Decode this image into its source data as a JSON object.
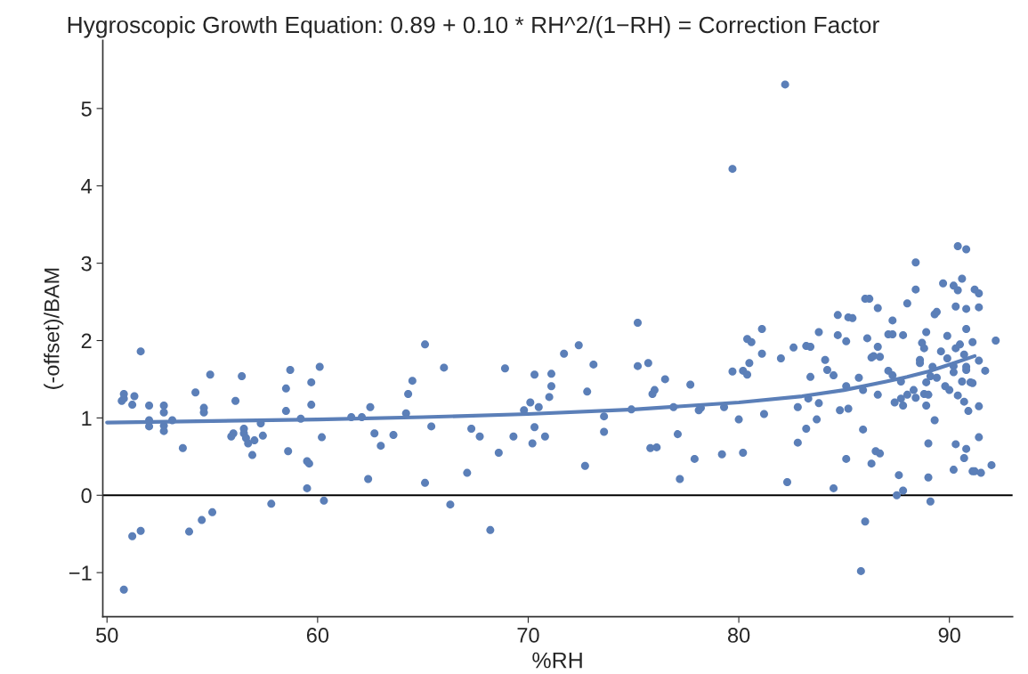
{
  "chart_data": {
    "type": "scatter",
    "title": "Hygroscopic Growth Equation: 0.89 + 0.10 * RH^2/(1−RH) = Correction Factor",
    "xlabel": "%RH",
    "ylabel": "(-offset)/BAM",
    "xlim": [
      49.8,
      93.0
    ],
    "ylim": [
      -1.57,
      5.88
    ],
    "xticks": [
      50,
      60,
      70,
      80,
      90
    ],
    "yticks": [
      {
        "value": -1,
        "label": "−1"
      },
      0,
      1,
      2,
      3,
      4,
      5
    ],
    "grid": false,
    "marker": "circle",
    "ref_lines": [
      {
        "axis": "y",
        "value": 0,
        "color": "#000000"
      }
    ],
    "series": [
      {
        "color": "#5b7fb8",
        "x": [
          50.7,
          50.8,
          50.8,
          51.2,
          51.3,
          51.6,
          50.8,
          51.2,
          51.6,
          52.0,
          52.0,
          52.0,
          52.7,
          52.7,
          52.7,
          52.7,
          53.1,
          53.6,
          54.2,
          54.6,
          54.6,
          54.9,
          53.9,
          54.5,
          55.0,
          56.1,
          56.4,
          55.9,
          56.0,
          56.5,
          56.5,
          56.6,
          56.7,
          56.9,
          57.0,
          57.4,
          57.3,
          57.8,
          58.5,
          58.7,
          58.5,
          58.6,
          59.2,
          59.5,
          59.6,
          59.5,
          59.7,
          59.7,
          60.1,
          60.2,
          60.3,
          61.6,
          62.1,
          62.5,
          62.7,
          63.0,
          62.4,
          63.6,
          64.2,
          64.3,
          64.5,
          65.1,
          65.4,
          65.1,
          66.0,
          66.3,
          67.1,
          67.3,
          67.7,
          68.2,
          68.6,
          68.9,
          69.3,
          69.8,
          70.1,
          70.3,
          70.5,
          70.3,
          70.2,
          70.8,
          71.0,
          71.1,
          71.1,
          71.7,
          72.4,
          72.7,
          72.8,
          73.1,
          73.6,
          73.6,
          74.9,
          75.2,
          75.2,
          75.7,
          76.0,
          75.9,
          75.8,
          76.1,
          76.5,
          76.9,
          77.1,
          77.2,
          77.7,
          77.9,
          78.1,
          78.2,
          79.3,
          79.2,
          79.7,
          80.2,
          80.0,
          79.7,
          80.2,
          80.4,
          80.5,
          80.4,
          80.6,
          81.1,
          81.1,
          81.2,
          82.0,
          82.2,
          82.6,
          83.2,
          83.4,
          82.3,
          82.8,
          82.8,
          83.2,
          83.4,
          83.3,
          83.8,
          83.7,
          83.8,
          84.1,
          84.2,
          84.5,
          84.5,
          84.7,
          84.7,
          85.1,
          85.1,
          84.8,
          85.2,
          85.1,
          85.2,
          85.4,
          85.7,
          85.9,
          85.9,
          86.0,
          85.8,
          86.0,
          86.2,
          86.6,
          86.1,
          86.6,
          86.3,
          86.4,
          86.7,
          86.6,
          86.5,
          86.7,
          86.3,
          87.1,
          87.3,
          87.3,
          87.3,
          87.6,
          87.5,
          87.8,
          89.1,
          90.4,
          90.8,
          88.4,
          90.6,
          89.7,
          90.2,
          88.4,
          90.4,
          91.2,
          91.4,
          88.0,
          90.3,
          90.8,
          91.4,
          89.3,
          89.4,
          87.1,
          87.8,
          88.9,
          89.9,
          90.8,
          92.2,
          88.7,
          88.8,
          90.5,
          91.1,
          90.3,
          89.6,
          88.6,
          88.6,
          89.9,
          90.7,
          91.4,
          91.7,
          89.2,
          90.2,
          90.8,
          90.8,
          90.2,
          89.1,
          89.4,
          87.7,
          88.9,
          90.6,
          91.0,
          91.1,
          89.8,
          90.0,
          88.3,
          88.4,
          88.0,
          87.7,
          87.8,
          87.4,
          88.8,
          89.0,
          88.9,
          90.4,
          90.7,
          90.9,
          91.4,
          89.3,
          89.0,
          89.0,
          90.3,
          90.8,
          90.7,
          91.4,
          90.2,
          91.1,
          91.2,
          91.5,
          92.0
        ],
        "values": [
          1.22,
          1.25,
          1.31,
          1.17,
          1.28,
          1.86,
          -1.22,
          -0.53,
          -0.46,
          1.16,
          0.97,
          0.89,
          1.16,
          1.07,
          0.9,
          0.83,
          0.97,
          0.61,
          1.33,
          1.13,
          1.07,
          1.56,
          -0.47,
          -0.32,
          -0.22,
          1.22,
          1.54,
          0.76,
          0.8,
          0.86,
          0.8,
          0.74,
          0.67,
          0.52,
          0.71,
          0.77,
          0.93,
          -0.11,
          1.38,
          1.62,
          1.09,
          0.57,
          0.99,
          0.44,
          0.41,
          0.09,
          1.17,
          1.46,
          1.66,
          0.75,
          -0.07,
          1.01,
          1.01,
          1.14,
          0.8,
          0.64,
          0.21,
          0.78,
          1.06,
          1.31,
          1.48,
          1.95,
          0.89,
          0.16,
          1.65,
          -0.12,
          0.29,
          0.86,
          0.76,
          -0.45,
          0.55,
          1.64,
          0.76,
          1.1,
          1.2,
          1.56,
          1.14,
          0.88,
          0.67,
          0.76,
          1.27,
          1.41,
          1.57,
          1.83,
          1.94,
          0.38,
          1.34,
          1.69,
          1.02,
          0.82,
          1.11,
          2.23,
          1.67,
          1.71,
          1.36,
          1.31,
          0.61,
          0.62,
          1.5,
          1.14,
          0.79,
          0.21,
          1.43,
          0.47,
          1.1,
          1.13,
          1.14,
          0.53,
          4.22,
          0.55,
          0.98,
          1.6,
          1.61,
          1.56,
          1.71,
          2.02,
          1.98,
          2.15,
          1.83,
          1.05,
          1.77,
          5.31,
          1.91,
          1.93,
          1.92,
          0.17,
          1.14,
          0.68,
          0.86,
          1.53,
          1.25,
          1.19,
          0.98,
          2.11,
          1.75,
          1.62,
          1.55,
          0.09,
          2.33,
          2.07,
          1.99,
          1.41,
          1.1,
          1.12,
          0.47,
          2.3,
          2.29,
          1.52,
          1.36,
          0.85,
          -0.34,
          -0.98,
          2.54,
          2.54,
          2.42,
          2.03,
          1.92,
          1.78,
          1.8,
          1.79,
          1.3,
          0.57,
          0.54,
          0.41,
          1.61,
          1.55,
          2.26,
          2.08,
          0.26,
          0.0,
          0.06,
          -0.08,
          3.22,
          3.18,
          3.01,
          2.8,
          2.74,
          2.71,
          2.66,
          2.65,
          2.66,
          2.61,
          2.48,
          2.44,
          2.41,
          2.43,
          2.34,
          2.37,
          2.08,
          2.07,
          2.11,
          2.06,
          2.15,
          2.0,
          1.97,
          1.9,
          1.95,
          1.98,
          1.9,
          1.86,
          1.75,
          1.71,
          1.77,
          1.82,
          1.74,
          1.61,
          1.66,
          1.67,
          1.66,
          1.62,
          1.59,
          1.54,
          1.52,
          1.47,
          1.46,
          1.47,
          1.46,
          1.45,
          1.41,
          1.36,
          1.36,
          1.26,
          1.3,
          1.25,
          1.16,
          1.2,
          1.31,
          1.3,
          1.16,
          1.29,
          1.21,
          1.09,
          1.15,
          0.97,
          0.67,
          0.23,
          0.66,
          0.6,
          0.48,
          0.75,
          0.33,
          0.31,
          0.31,
          0.29,
          0.39
        ]
      },
      {
        "type": "line",
        "color": "#5b7fb8",
        "marker": "none",
        "line_style": "solid",
        "x": [
          50,
          55,
          60,
          65,
          70,
          75,
          80,
          83,
          85,
          87,
          88,
          89,
          90,
          91.2
        ],
        "values": [
          0.94,
          0.96,
          0.98,
          1.01,
          1.05,
          1.11,
          1.2,
          1.28,
          1.36,
          1.47,
          1.53,
          1.6,
          1.69,
          1.8
        ]
      }
    ]
  }
}
